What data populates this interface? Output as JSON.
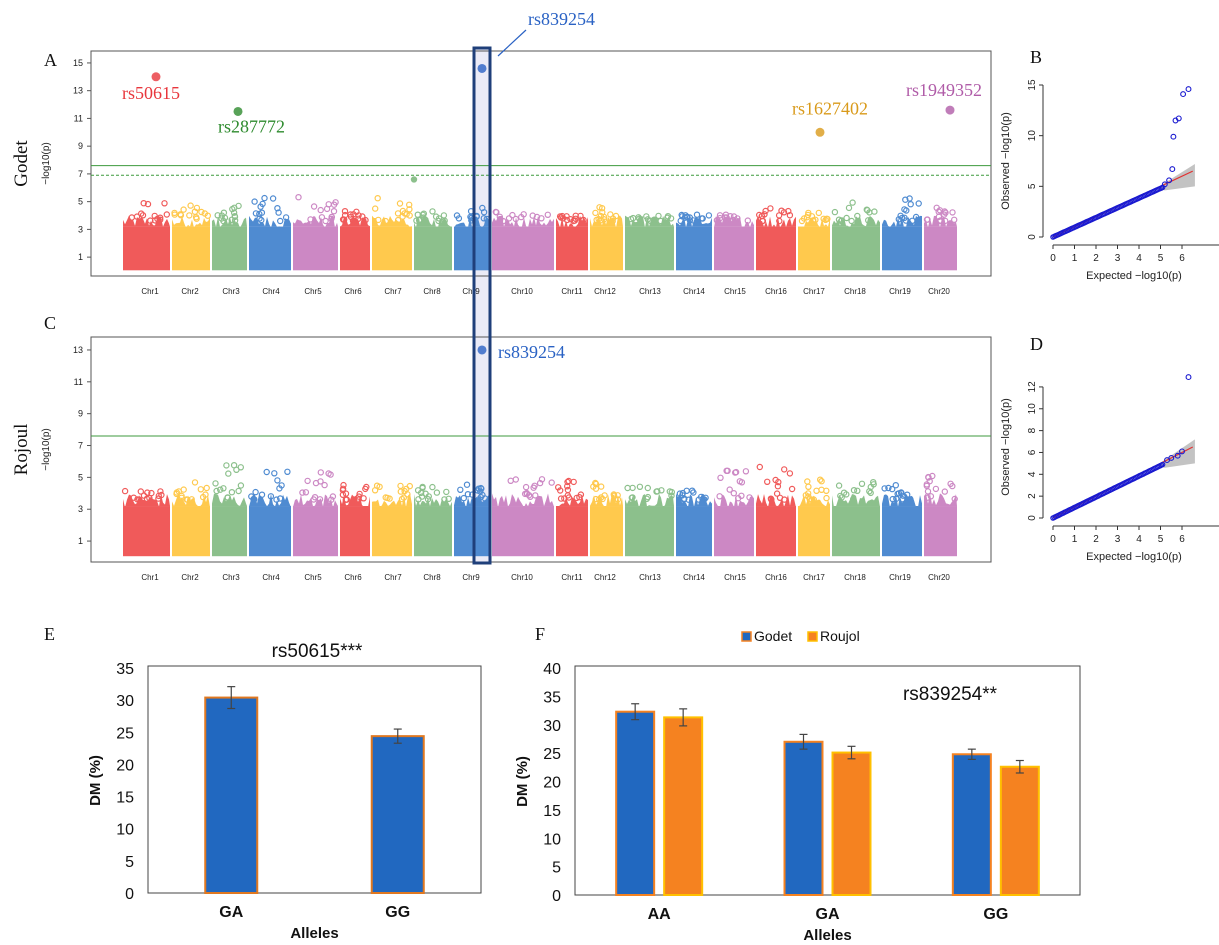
{
  "panels": {
    "A": "A",
    "B": "B",
    "C": "C",
    "D": "D",
    "E": "E",
    "F": "F"
  },
  "colors": {
    "chr_palette": [
      "#f05a5a",
      "#ffc94d",
      "#8cc08c",
      "#4f8bd1",
      "#cc88c4"
    ],
    "threshold_line": "#3d9a3d",
    "highlight_box": "#1f3f7a",
    "highlight_fill": "#e8e8f6",
    "qq_points": "#1a1ad0",
    "qq_line": "#e23030",
    "bar_godet": "#2168c0",
    "bar_roujol": "#f58220",
    "bar_edge_e": "#e07820",
    "bar_edge_f_roujol": "#ffc000"
  },
  "chart_data": [
    {
      "id": "A",
      "type": "scatter",
      "subtype": "manhattan",
      "row_label": "Godet",
      "ylabel": "−log10(p)",
      "ylim": [
        0,
        15.5
      ],
      "yticks": [
        1,
        3,
        5,
        7,
        9,
        11,
        13,
        15
      ],
      "categories": [
        "Chr1",
        "Chr2",
        "Chr3",
        "Chr4",
        "Chr5",
        "Chr6",
        "Chr7",
        "Chr8",
        "Chr9",
        "Chr10",
        "Chr11",
        "Chr12",
        "Chr13",
        "Chr14",
        "Chr15",
        "Chr16",
        "Chr17",
        "Chr18",
        "Chr19",
        "Chr20"
      ],
      "thresholds": [
        {
          "value": 7.6,
          "style": "solid"
        },
        {
          "value": 6.9,
          "style": "dashed"
        }
      ],
      "peak_heights": [
        5.2,
        4.8,
        4.7,
        5.3,
        5.6,
        4.6,
        5.3,
        4.4,
        4.6,
        4.3,
        4.1,
        4.7,
        4.0,
        4.1,
        4.2,
        4.8,
        4.3,
        5.1,
        5.4,
        4.9
      ],
      "highlighted": [
        {
          "label": "rs50615",
          "chr": "Chr1",
          "y": 14.0,
          "color": "#e8363c"
        },
        {
          "label": "rs287772",
          "chr": "Chr3",
          "y": 11.5,
          "color": "#2e8b2e"
        },
        {
          "label": "rs839254",
          "chr": "Chr9",
          "y": 14.6,
          "color": "#2a62c4"
        },
        {
          "label": "rs1627402",
          "chr": "Chr17",
          "y": 10.0,
          "color": "#d99a1a"
        },
        {
          "label": "rs1949352",
          "chr": "Chr20",
          "y": 11.6,
          "color": "#b05ca8"
        }
      ],
      "extra_points": [
        {
          "chr": "Chr8",
          "y": 6.6
        }
      ]
    },
    {
      "id": "B",
      "type": "scatter",
      "subtype": "qq",
      "xlabel": "Expected −log10(p)",
      "ylabel": "Observed −log10(p)",
      "xticks": [
        0,
        1,
        2,
        3,
        4,
        5,
        6
      ],
      "yticks": [
        0,
        5,
        10,
        15
      ],
      "tail_points": [
        [
          5.2,
          5.2
        ],
        [
          5.4,
          5.6
        ],
        [
          5.55,
          6.7
        ],
        [
          5.6,
          9.9
        ],
        [
          5.7,
          11.5
        ],
        [
          5.85,
          11.7
        ],
        [
          6.05,
          14.1
        ],
        [
          6.3,
          14.6
        ]
      ]
    },
    {
      "id": "C",
      "type": "scatter",
      "subtype": "manhattan",
      "row_label": "Rojoul",
      "ylabel": "−log10(p)",
      "ylim": [
        0,
        13.5
      ],
      "yticks": [
        1,
        3,
        5,
        7,
        9,
        11,
        13
      ],
      "categories": [
        "Chr1",
        "Chr2",
        "Chr3",
        "Chr4",
        "Chr5",
        "Chr6",
        "Chr7",
        "Chr8",
        "Chr9",
        "Chr10",
        "Chr11",
        "Chr12",
        "Chr13",
        "Chr14",
        "Chr15",
        "Chr16",
        "Chr17",
        "Chr18",
        "Chr19",
        "Chr20"
      ],
      "thresholds": [
        {
          "value": 7.6,
          "style": "solid"
        }
      ],
      "peak_heights": [
        4.2,
        4.8,
        5.9,
        5.5,
        5.4,
        4.6,
        4.5,
        4.4,
        4.7,
        5.1,
        4.8,
        4.9,
        4.6,
        4.2,
        5.5,
        5.7,
        4.9,
        5.0,
        4.8,
        5.4
      ],
      "highlighted": [
        {
          "label": "rs839254",
          "chr": "Chr9",
          "y": 13.0,
          "color": "#2a62c4"
        }
      ]
    },
    {
      "id": "D",
      "type": "scatter",
      "subtype": "qq",
      "xlabel": "Expected −log10(p)",
      "ylabel": "Observed −log10(p)",
      "xticks": [
        0,
        1,
        2,
        3,
        4,
        5,
        6
      ],
      "yticks": [
        0,
        2,
        4,
        6,
        8,
        10,
        12
      ],
      "tail_points": [
        [
          5.3,
          5.3
        ],
        [
          5.5,
          5.5
        ],
        [
          5.8,
          5.7
        ],
        [
          6.0,
          6.1
        ],
        [
          6.3,
          12.9
        ]
      ]
    },
    {
      "id": "E",
      "type": "bar",
      "title": "rs50615***",
      "xlabel": "Alleles",
      "ylabel": "DM (%)",
      "ylim": [
        0,
        35
      ],
      "yticks": [
        0,
        5,
        10,
        15,
        20,
        25,
        30,
        35
      ],
      "categories": [
        "GA",
        "GG"
      ],
      "series": [
        {
          "values": [
            30.4,
            24.4
          ],
          "errors": [
            1.7,
            1.1
          ]
        }
      ]
    },
    {
      "id": "F",
      "type": "bar",
      "title": "rs839254**",
      "xlabel": "Alleles",
      "ylabel": "DM (%)",
      "ylim": [
        0,
        40
      ],
      "yticks": [
        0,
        5,
        10,
        15,
        20,
        25,
        30,
        35,
        40
      ],
      "categories": [
        "AA",
        "GA",
        "GG"
      ],
      "legend": "top-center",
      "series": [
        {
          "name": "Godet",
          "values": [
            32.3,
            27.0,
            24.8
          ],
          "errors": [
            1.4,
            1.3,
            0.9
          ]
        },
        {
          "name": "Roujol",
          "values": [
            31.3,
            25.1,
            22.6
          ],
          "errors": [
            1.5,
            1.1,
            1.1
          ]
        }
      ]
    }
  ]
}
